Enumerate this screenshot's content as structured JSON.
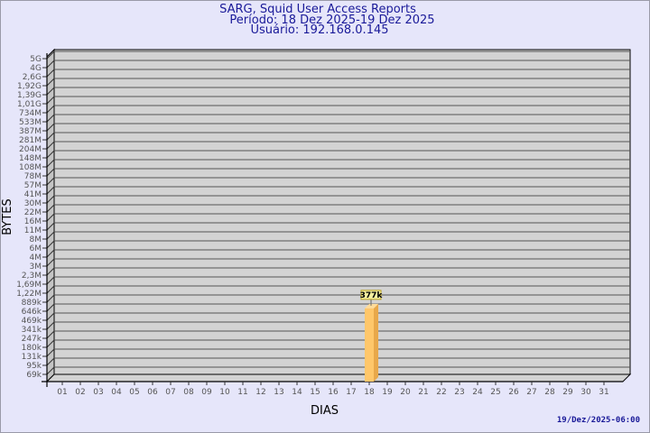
{
  "header": {
    "title": "SARG, Squid User Access Reports",
    "period": "Período: 18 Dez 2025-19 Dez 2025",
    "user": "Usuário: 192.168.0.145"
  },
  "footer": "19/Dez/2025-06:00",
  "chart_data": {
    "type": "bar",
    "title": "SARG, Squid User Access Reports",
    "xlabel": "DIAS",
    "ylabel": "BYTES",
    "y_scale": "log",
    "y_ticks": [
      "5G",
      "4G",
      "2,6G",
      "1,92G",
      "1,39G",
      "1,01G",
      "734M",
      "533M",
      "387M",
      "281M",
      "204M",
      "148M",
      "108M",
      "78M",
      "57M",
      "41M",
      "30M",
      "22M",
      "16M",
      "11M",
      "8M",
      "6M",
      "4M",
      "3M",
      "2,3M",
      "1,69M",
      "1,22M",
      "889k",
      "646k",
      "469k",
      "341k",
      "247k",
      "180k",
      "131k",
      "95k",
      "69k"
    ],
    "categories": [
      "01",
      "02",
      "03",
      "04",
      "05",
      "06",
      "07",
      "08",
      "09",
      "10",
      "11",
      "12",
      "13",
      "14",
      "15",
      "16",
      "17",
      "18",
      "19",
      "20",
      "21",
      "22",
      "23",
      "24",
      "25",
      "26",
      "27",
      "28",
      "29",
      "30",
      "31"
    ],
    "series": [
      {
        "values": {
          "18": 377000
        }
      }
    ],
    "data_labels": {
      "18": "377k"
    },
    "grid": true,
    "colors": {
      "bar": "#ffc76a",
      "bar_side": "#e8a84a",
      "wall": "#d3d3d3",
      "background": "#e6e6fa",
      "title": "#1a1a99"
    }
  }
}
